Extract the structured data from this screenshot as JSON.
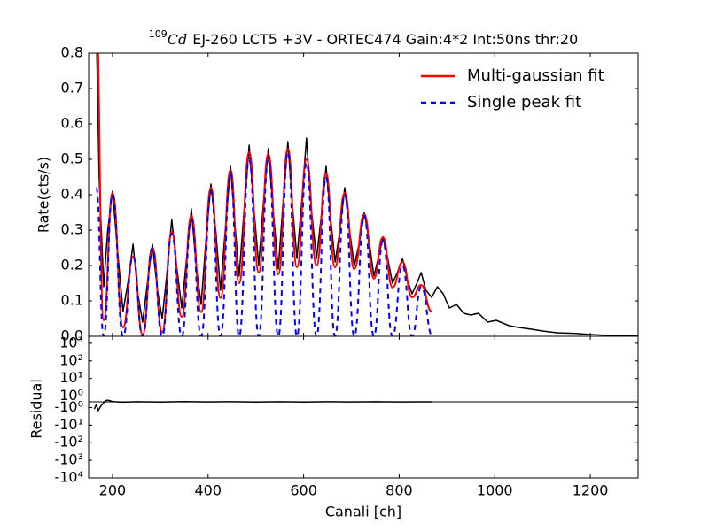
{
  "chart_data": [
    {
      "type": "line",
      "title": [
        "109",
        "Cd",
        "EJ-260 LCT5 +3V - ORTEC474 Gain:4*2 Int:50ns thr:20"
      ],
      "ylabel": "Rate(cts/s)",
      "xlim": [
        150,
        1300
      ],
      "ylim": [
        0,
        0.8
      ],
      "yticks": [
        {
          "value": 0,
          "label": "0.0"
        },
        0.1,
        0.2,
        0.3,
        0.4,
        0.5,
        0.6,
        0.7,
        0.8
      ],
      "legend": "upper right",
      "series": [
        {
          "color": "#000000",
          "x": [
            163,
            165,
            172,
            181.5,
            190,
            200,
            210,
            222,
            232,
            243,
            253,
            263,
            273,
            283.5,
            294,
            304,
            314,
            324,
            334,
            345,
            355,
            365,
            375,
            385.5,
            396,
            406,
            416,
            426,
            436,
            447,
            456,
            465,
            475,
            486,
            496,
            506,
            516,
            526,
            536,
            547,
            557,
            567,
            576,
            586,
            596,
            606,
            616,
            627,
            637,
            647,
            656,
            666,
            676,
            686,
            696,
            706,
            716,
            727,
            737,
            747,
            756,
            766,
            776,
            786,
            796,
            807,
            817,
            827,
            837,
            846,
            856,
            868,
            880,
            892,
            905,
            920,
            935,
            950,
            966,
            985,
            1003,
            1030,
            1050,
            1077,
            1100,
            1130,
            1170,
            1200,
            1230,
            1263,
            1300
          ],
          "values": [
            0.8,
            0.95,
            0.45,
            0.14,
            0.3,
            0.41,
            0.25,
            0.07,
            0.15,
            0.26,
            0.12,
            0.04,
            0.15,
            0.26,
            0.13,
            0.05,
            0.18,
            0.33,
            0.2,
            0.08,
            0.22,
            0.36,
            0.2,
            0.09,
            0.28,
            0.43,
            0.3,
            0.13,
            0.3,
            0.48,
            0.32,
            0.17,
            0.35,
            0.54,
            0.36,
            0.2,
            0.38,
            0.53,
            0.36,
            0.19,
            0.38,
            0.55,
            0.38,
            0.22,
            0.38,
            0.56,
            0.36,
            0.22,
            0.34,
            0.48,
            0.34,
            0.21,
            0.3,
            0.42,
            0.3,
            0.2,
            0.26,
            0.35,
            0.27,
            0.17,
            0.22,
            0.28,
            0.22,
            0.15,
            0.18,
            0.22,
            0.16,
            0.12,
            0.15,
            0.18,
            0.13,
            0.11,
            0.14,
            0.12,
            0.08,
            0.09,
            0.065,
            0.06,
            0.065,
            0.04,
            0.045,
            0.03,
            0.025,
            0.02,
            0.015,
            0.01,
            0.008,
            0.005,
            0.003,
            0.002,
            0.002
          ]
        },
        {
          "name": "Multi-gaussian fit",
          "color": "#ff0000",
          "smooth": true,
          "x": [
            165,
            181.5,
            200,
            222,
            243,
            263,
            283.5,
            304,
            324,
            345,
            365,
            385.5,
            406,
            426,
            447,
            465,
            486,
            506,
            526,
            547,
            567,
            586,
            606,
            627,
            647,
            665.6,
            686,
            706,
            727,
            747,
            766,
            786,
            807,
            827,
            846,
            868
          ],
          "values": [
            0.95,
            0.045,
            0.405,
            0.025,
            0.225,
            0.005,
            0.25,
            0.012,
            0.295,
            0.055,
            0.34,
            0.068,
            0.42,
            0.108,
            0.47,
            0.15,
            0.52,
            0.18,
            0.515,
            0.175,
            0.53,
            0.195,
            0.5,
            0.2,
            0.46,
            0.195,
            0.405,
            0.19,
            0.345,
            0.163,
            0.28,
            0.138,
            0.21,
            0.11,
            0.145,
            0.07
          ]
        },
        {
          "name": "Single peak fit",
          "color": "#0000ff",
          "smooth": true,
          "dashed": true,
          "x": [
            166,
            181.5,
            200,
            222,
            243,
            263,
            283.5,
            304,
            324,
            345,
            365,
            385.5,
            406,
            426,
            447,
            465,
            486,
            506,
            526,
            547,
            567,
            586,
            606,
            627,
            647,
            665.6,
            686,
            706,
            727,
            747,
            766,
            786,
            807,
            827,
            846,
            870
          ],
          "values": [
            0.42,
            0,
            0.4,
            0,
            0.225,
            0,
            0.25,
            0,
            0.29,
            0,
            0.33,
            0,
            0.41,
            0,
            0.46,
            0,
            0.5,
            0,
            0.5,
            0,
            0.52,
            0,
            0.49,
            0,
            0.45,
            0,
            0.4,
            0,
            0.34,
            0,
            0.27,
            0,
            0.2,
            0,
            0.14,
            0
          ]
        }
      ]
    },
    {
      "type": "line",
      "xlabel": "Canali [ch]",
      "ylabel": "Residual",
      "xlim": [
        150,
        1300
      ],
      "xticks": [
        200,
        400,
        600,
        800,
        1000,
        1200
      ],
      "yscale": "symlog",
      "linthresh": 1,
      "ylim": [
        -10000,
        2500
      ],
      "yticks": [
        {
          "value": 1000,
          "label": "10³"
        },
        {
          "value": 100,
          "label": "10²"
        },
        {
          "value": 10,
          "label": "10¹"
        },
        {
          "value": 1,
          "label": "10⁰"
        },
        {
          "value": -1,
          "label": "-10⁰"
        },
        {
          "value": -10,
          "label": "-10¹"
        },
        {
          "value": -100,
          "label": "-10²"
        },
        {
          "value": -1000,
          "label": "-10³"
        },
        {
          "value": -10000,
          "label": "-10⁴"
        }
      ],
      "series": [
        {
          "color": "#000000",
          "x": [
            162,
            166,
            170,
            175,
            180,
            185,
            190,
            200,
            220,
            250,
            300,
            350,
            400,
            450,
            500,
            550,
            600,
            650,
            700,
            750,
            800,
            850,
            868
          ],
          "values": [
            -1.2,
            -0.5,
            -1.5,
            -0.8,
            -0.3,
            0.2,
            0.3,
            0.05,
            -0.05,
            0.02,
            -0.03,
            0.04,
            -0.02,
            0.03,
            -0.04,
            0.02,
            -0.03,
            0.02,
            -0.02,
            0.03,
            -0.02,
            0.01,
            0
          ]
        }
      ]
    }
  ]
}
